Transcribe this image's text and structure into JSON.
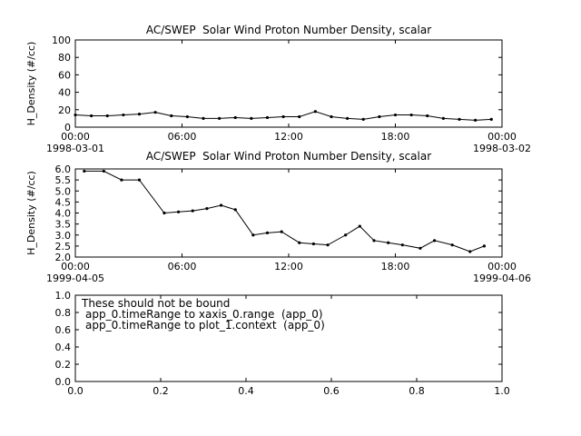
{
  "page": {
    "background": "#ffffff",
    "foreground": "#000000"
  },
  "chart_data": [
    {
      "type": "line",
      "title": "AC/SWEP  Solar Wind Proton Number Density, scalar",
      "xlabel": "",
      "ylabel": "H_Density (#/cc)",
      "ylim": [
        0,
        100
      ],
      "yticks": [
        0,
        20,
        40,
        60,
        80,
        100
      ],
      "ytick_labels": [
        "0",
        "20",
        "40",
        "60",
        "80",
        "100"
      ],
      "xlim": [
        0,
        24
      ],
      "xticks": [
        0,
        6,
        12,
        18,
        24
      ],
      "xtick_labels": [
        "00:00",
        "06:00",
        "12:00",
        "18:00",
        "00:00"
      ],
      "x_start_date": "1998-03-01",
      "x_end_date": "1998-03-02",
      "legend": "off",
      "grid": "off",
      "line_color": "#000000",
      "x": [
        0,
        0.9,
        1.8,
        2.7,
        3.6,
        4.5,
        5.4,
        6.3,
        7.2,
        8.1,
        9.0,
        9.9,
        10.8,
        11.7,
        12.6,
        13.5,
        14.4,
        15.3,
        16.2,
        17.1,
        18.0,
        18.9,
        19.8,
        20.7,
        21.6,
        22.5,
        23.4
      ],
      "y": [
        14,
        13,
        13,
        14,
        15,
        17,
        13,
        12,
        10,
        10,
        11,
        10,
        11,
        12,
        12,
        18,
        12,
        10,
        9,
        12,
        14,
        14,
        13,
        10,
        9,
        8,
        9
      ]
    },
    {
      "type": "line",
      "title": "AC/SWEP  Solar Wind Proton Number Density, scalar",
      "xlabel": "",
      "ylabel": "H_Density (#/cc)",
      "ylim": [
        2.0,
        6.0
      ],
      "yticks": [
        2.0,
        2.5,
        3.0,
        3.5,
        4.0,
        4.5,
        5.0,
        5.5,
        6.0
      ],
      "ytick_labels": [
        "2.0",
        "2.5",
        "3.0",
        "3.5",
        "4.0",
        "4.5",
        "5.0",
        "5.5",
        "6.0"
      ],
      "xlim": [
        0,
        24
      ],
      "xticks": [
        0,
        6,
        12,
        18,
        24
      ],
      "xtick_labels": [
        "00:00",
        "06:00",
        "12:00",
        "18:00",
        "00:00"
      ],
      "x_start_date": "1999-04-05",
      "x_end_date": "1999-04-06",
      "legend": "off",
      "grid": "off",
      "line_color": "#000000",
      "x": [
        0.5,
        1.6,
        2.6,
        3.6,
        5.0,
        5.8,
        6.6,
        7.4,
        8.2,
        9.0,
        10.0,
        10.8,
        11.6,
        12.6,
        13.4,
        14.2,
        15.2,
        16.0,
        16.8,
        17.6,
        18.4,
        19.4,
        20.2,
        21.2,
        22.2,
        23.0
      ],
      "y": [
        5.9,
        5.9,
        5.5,
        5.5,
        4.0,
        4.05,
        4.1,
        4.2,
        4.35,
        4.15,
        3.0,
        3.1,
        3.15,
        2.65,
        2.6,
        2.55,
        3.0,
        3.4,
        2.75,
        2.65,
        2.55,
        2.4,
        2.75,
        2.55,
        2.25,
        2.5
      ]
    },
    {
      "type": "empty",
      "title": "",
      "xlabel": "",
      "ylabel": "",
      "ylim": [
        0,
        1
      ],
      "yticks": [
        0,
        0.2,
        0.4,
        0.6,
        0.8,
        1.0
      ],
      "ytick_labels": [
        "0.0",
        "0.2",
        "0.4",
        "0.6",
        "0.8",
        "1.0"
      ],
      "xlim": [
        0,
        1
      ],
      "xticks": [
        0,
        0.2,
        0.4,
        0.6,
        0.8,
        1.0
      ],
      "xtick_labels": [
        "0.0",
        "0.2",
        "0.4",
        "0.6",
        "0.8",
        "1.0"
      ],
      "legend": "off",
      "grid": "off",
      "annotations": [
        "These should not be bound",
        "app_0.timeRange to xaxis_0.range  (app_0)",
        "app_0.timeRange to plot_1.context  (app_0)"
      ]
    }
  ]
}
